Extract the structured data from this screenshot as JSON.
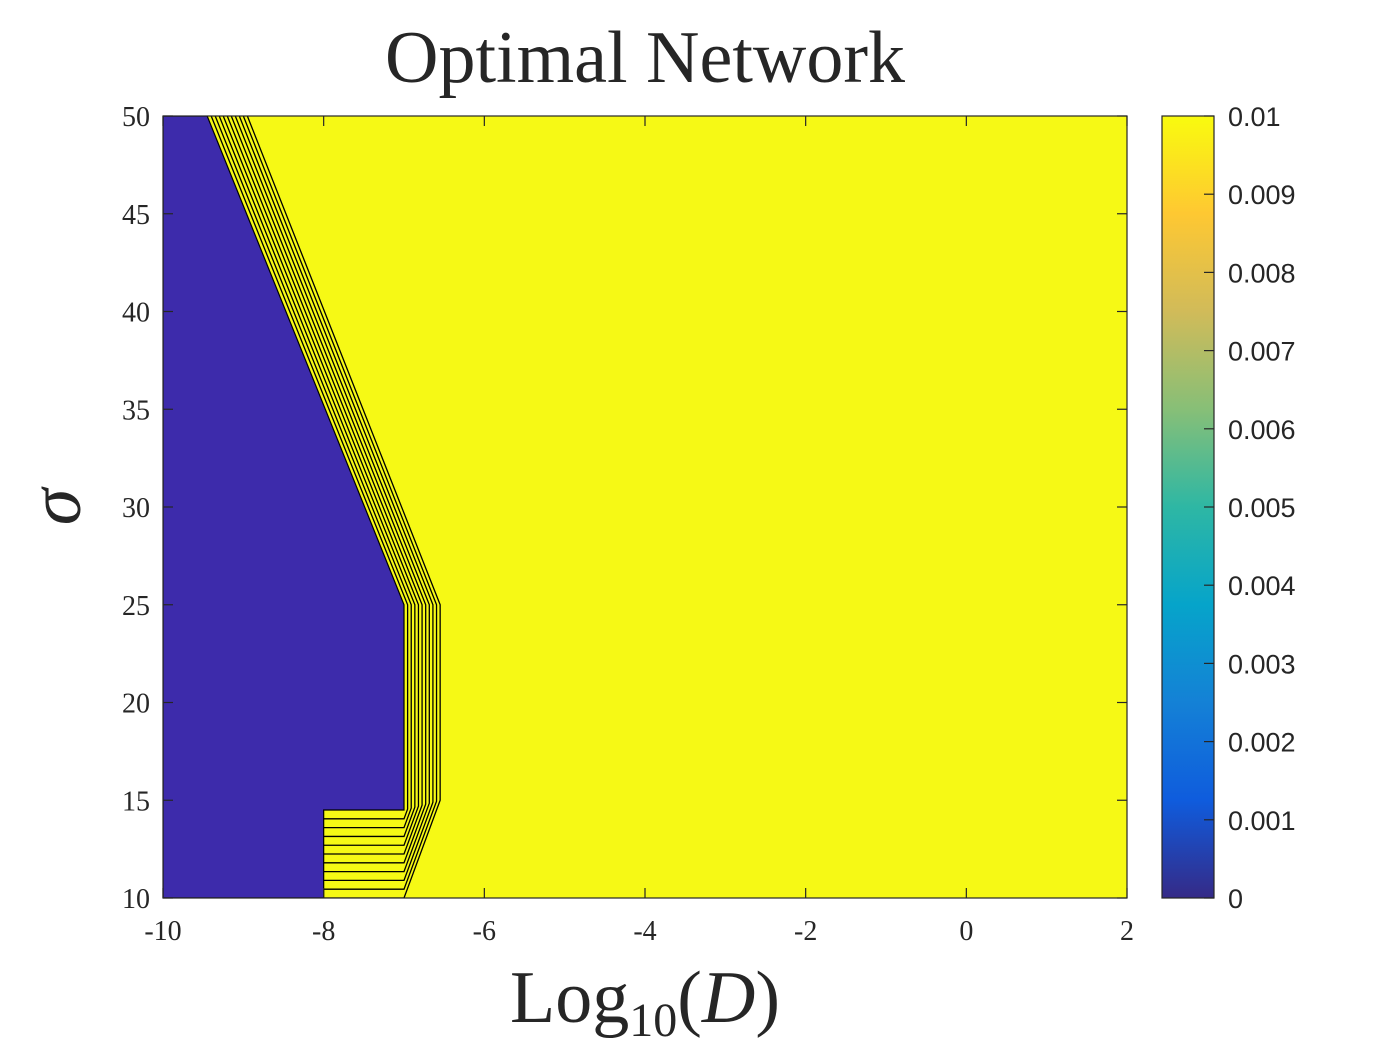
{
  "chart_data": {
    "type": "heatmap",
    "subtype": "filled-contour",
    "title": "Optimal Network",
    "xlabel": "Log",
    "xlabel_subscript": "10",
    "xlabel_arg": "(D)",
    "xlabel_arg_open": "(",
    "xlabel_arg_var": "D",
    "xlabel_arg_close": ")",
    "ylabel": "σ",
    "xlim": [
      -10,
      2
    ],
    "ylim": [
      10,
      50
    ],
    "xticks": [
      -10,
      -8,
      -6,
      -4,
      -2,
      0,
      2
    ],
    "xtick_labels": [
      "-10",
      "-8",
      "-6",
      "-4",
      "-2",
      "0",
      "2"
    ],
    "yticks": [
      10,
      15,
      20,
      25,
      30,
      35,
      40,
      45,
      50
    ],
    "ytick_labels": [
      "10",
      "15",
      "20",
      "25",
      "30",
      "35",
      "40",
      "45",
      "50"
    ],
    "grid": false,
    "colorbar": {
      "colormap": "parula",
      "range": [
        0,
        0.01
      ],
      "ticks": [
        0,
        0.001,
        0.002,
        0.003,
        0.004,
        0.005,
        0.006,
        0.007,
        0.008,
        0.009,
        0.01
      ],
      "tick_labels": [
        "0",
        "0.001",
        "0.002",
        "0.003",
        "0.004",
        "0.005",
        "0.006",
        "0.007",
        "0.008",
        "0.009",
        "0.01"
      ],
      "colors": [
        "#352a87",
        "#0f5cdd",
        "#1481d6",
        "#06a4ca",
        "#2eb7a4",
        "#87bf77",
        "#d1bb59",
        "#fec832",
        "#f9fb0e"
      ]
    },
    "regions": {
      "low_value": 0,
      "high_value": 0.01,
      "low_color": "#3d2bab",
      "high_color": "#f6f915",
      "contour_line_color": "#000000"
    },
    "boundary_low": [
      [
        -9.45,
        50
      ],
      [
        -7.0,
        25
      ],
      [
        -7.0,
        14.5
      ],
      [
        -8.0,
        14.5
      ],
      [
        -8.0,
        10
      ],
      [
        -8.45,
        10
      ]
    ],
    "boundary_high": [
      [
        -8.95,
        50
      ],
      [
        -6.55,
        25
      ],
      [
        -6.55,
        15
      ],
      [
        -7.0,
        10
      ],
      [
        -8.0,
        10
      ]
    ],
    "contour_levels": 9
  }
}
